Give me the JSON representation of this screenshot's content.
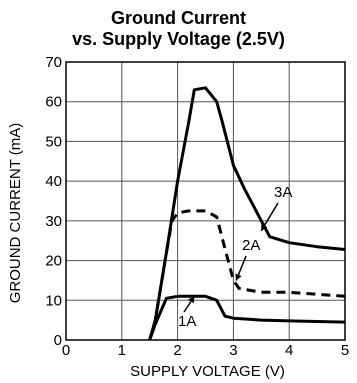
{
  "chart_data": {
    "type": "line",
    "title": "Ground Current",
    "subtitle": "vs. Supply Voltage (2.5V)",
    "xlabel": "SUPPLY VOLTAGE (V)",
    "ylabel": "GROUND CURRENT (mA)",
    "xlim": [
      0,
      5
    ],
    "ylim": [
      0,
      70
    ],
    "xticks": [
      "0",
      "1",
      "2",
      "3",
      "4",
      "5"
    ],
    "yticks": [
      "0",
      "10",
      "20",
      "30",
      "40",
      "50",
      "60",
      "70"
    ],
    "grid": true,
    "series": [
      {
        "name": "3A",
        "style": "solid",
        "x": [
          1.5,
          1.6,
          1.8,
          2.0,
          2.2,
          2.3,
          2.5,
          2.7,
          2.8,
          3.0,
          3.2,
          3.65,
          4.0,
          4.5,
          5.0
        ],
        "y": [
          0,
          5,
          22,
          40,
          55,
          63,
          63.5,
          60,
          55,
          44,
          38,
          26,
          24.5,
          23.5,
          22.8
        ]
      },
      {
        "name": "2A",
        "style": "dashed",
        "x": [
          1.5,
          1.6,
          1.8,
          1.9,
          2.0,
          2.2,
          2.5,
          2.7,
          2.85,
          3.0,
          3.1,
          3.5,
          4.0,
          4.5,
          5.0
        ],
        "y": [
          0,
          5,
          22,
          30,
          32,
          32.5,
          32.5,
          31,
          23,
          15,
          13,
          12,
          12,
          11.5,
          11
        ]
      },
      {
        "name": "1A",
        "style": "solid",
        "x": [
          1.5,
          1.6,
          1.8,
          2.0,
          2.3,
          2.5,
          2.7,
          2.85,
          3.0,
          3.5,
          4.0,
          5.0
        ],
        "y": [
          0,
          4,
          10.5,
          11,
          11,
          11,
          10,
          6,
          5.5,
          5,
          4.8,
          4.5
        ]
      }
    ],
    "annotations": [
      {
        "text": "3A",
        "series": "3A"
      },
      {
        "text": "2A",
        "series": "2A"
      },
      {
        "text": "1A",
        "series": "1A"
      }
    ]
  }
}
